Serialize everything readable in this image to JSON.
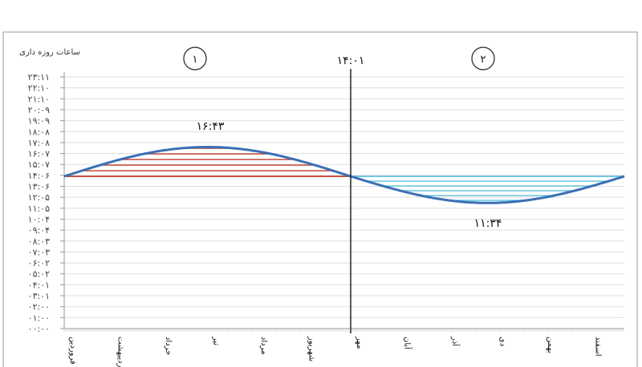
{
  "chart_data": {
    "type": "line",
    "title": "",
    "ylabel": "ساعات روزه داری",
    "y_tick_labels": [
      "۲۳:۱۱",
      "۲۲:۱۰",
      "۲۱:۱۰",
      "۲۰:۰۹",
      "۱۹:۰۹",
      "۱۸:۰۸",
      "۱۷:۰۸",
      "۱۶:۰۷",
      "۱۵:۰۷",
      "۱۴:۰۶",
      "۱۳:۰۶",
      "۱۲:۰۵",
      "۱۱:۰۵",
      "۱۰:۰۴",
      "۰۹:۰۴",
      "۰۸:۰۳",
      "۰۷:۰۳",
      "۰۶:۰۲",
      "۰۵:۰۲",
      "۰۴:۰۱",
      "۰۳:۰۱",
      "۰۲:۰۰",
      "۰۱:۰۰",
      "۰۰:۰۰"
    ],
    "ylim_hours": [
      0,
      23.18
    ],
    "categories": [
      "فروردین",
      "اردیبهشت",
      "خرداد",
      "تیر",
      "مرداد",
      "شهریور",
      "مهر",
      "آبان",
      "آذر",
      "دی",
      "بهمن",
      "اسفند"
    ],
    "baseline_hours": 14.02,
    "baseline_label": "۱۴:۰۱",
    "max_hours": 16.72,
    "max_label": "۱۶:۴۳",
    "min_hours": 11.57,
    "min_label": "۱۱:۳۴",
    "regions": [
      {
        "label": "۱",
        "color": "#c0392b"
      },
      {
        "label": "۲",
        "color": "#5bc0de"
      }
    ],
    "curve_color": "#3a6fb5",
    "grid": true
  }
}
